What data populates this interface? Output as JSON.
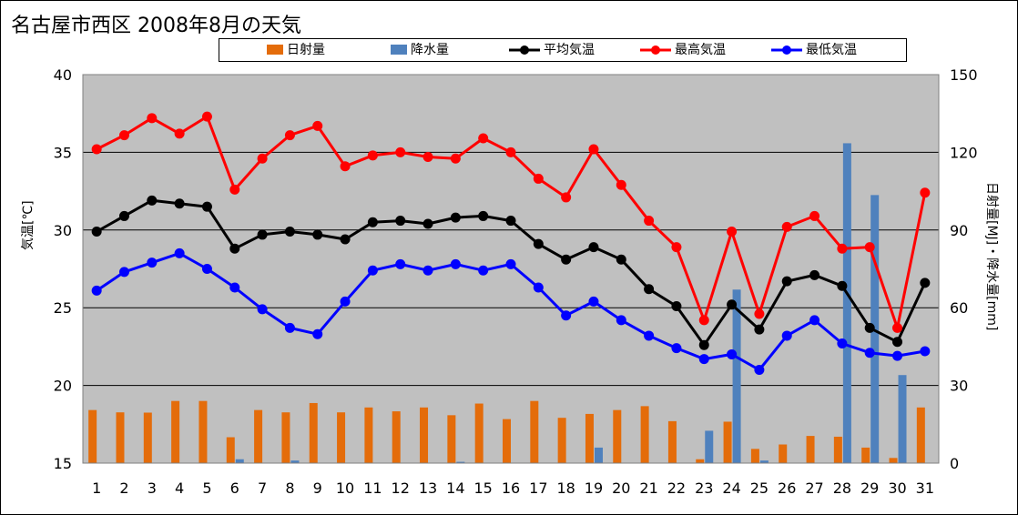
{
  "chart_data": {
    "type": "bar+line",
    "title": "名古屋市西区  2008年8月の天気",
    "x": [
      1,
      2,
      3,
      4,
      5,
      6,
      7,
      8,
      9,
      10,
      11,
      12,
      13,
      14,
      15,
      16,
      17,
      18,
      19,
      20,
      21,
      22,
      23,
      24,
      25,
      26,
      27,
      28,
      29,
      30,
      31
    ],
    "ylabel_left": "気温[℃]",
    "ylabel_right": "日射量[MJ]・降水量[mm]",
    "ylim_left": [
      15,
      40
    ],
    "yticks_left": [
      15,
      20,
      25,
      30,
      35,
      40
    ],
    "ylim_right": [
      0,
      150
    ],
    "yticks_right": [
      0,
      30,
      60,
      90,
      120,
      150
    ],
    "grid": true,
    "plot_background": "#c0c0c0",
    "legend_position": "top",
    "bar_series": [
      {
        "name": "日射量",
        "color": "#e46c0a",
        "axis": "right",
        "values": [
          20.5,
          19.6,
          19.5,
          24,
          24,
          10,
          20.5,
          19.6,
          23.2,
          19.6,
          21.5,
          20,
          21.5,
          18.5,
          23,
          17,
          24,
          17.5,
          19,
          20.5,
          22,
          16.2,
          1.5,
          16,
          5.5,
          7.2,
          10.5,
          10.2,
          6,
          2,
          21.5
        ]
      },
      {
        "name": "降水量",
        "color": "#4f81bd",
        "axis": "right",
        "values": [
          0,
          0,
          0,
          0,
          0,
          1.5,
          0,
          1,
          0,
          0,
          0,
          0,
          0,
          0.5,
          0,
          0,
          0,
          0,
          6,
          0,
          0,
          0,
          12.5,
          67,
          1,
          0,
          0,
          123.5,
          103.5,
          34,
          0
        ]
      }
    ],
    "line_series": [
      {
        "name": "平均気温",
        "color": "#000000",
        "axis": "left",
        "values": [
          29.9,
          30.9,
          31.9,
          31.7,
          31.5,
          28.8,
          29.7,
          29.9,
          29.7,
          29.4,
          30.5,
          30.6,
          30.4,
          30.8,
          30.9,
          30.6,
          29.1,
          28.1,
          28.9,
          28.1,
          26.2,
          25.1,
          22.6,
          25.2,
          23.6,
          26.7,
          27.1,
          26.4,
          23.7,
          22.8,
          26.6
        ]
      },
      {
        "name": "最高気温",
        "color": "#ff0000",
        "axis": "left",
        "values": [
          35.2,
          36.1,
          37.2,
          36.2,
          37.3,
          32.6,
          34.6,
          36.1,
          36.7,
          34.1,
          34.8,
          35,
          34.7,
          34.6,
          35.9,
          35,
          33.3,
          32.1,
          35.2,
          32.9,
          30.6,
          28.9,
          24.2,
          29.9,
          24.6,
          30.2,
          30.9,
          28.8,
          28.9,
          23.7,
          32.4
        ]
      },
      {
        "name": "最低気温",
        "color": "#0000ff",
        "axis": "left",
        "values": [
          26.1,
          27.3,
          27.9,
          28.5,
          27.5,
          26.3,
          24.9,
          23.7,
          23.3,
          25.4,
          27.4,
          27.8,
          27.4,
          27.8,
          27.4,
          27.8,
          26.3,
          24.5,
          25.4,
          24.2,
          23.2,
          22.4,
          21.7,
          22,
          21,
          23.2,
          24.2,
          22.7,
          22.1,
          21.9,
          22.2
        ]
      }
    ]
  }
}
